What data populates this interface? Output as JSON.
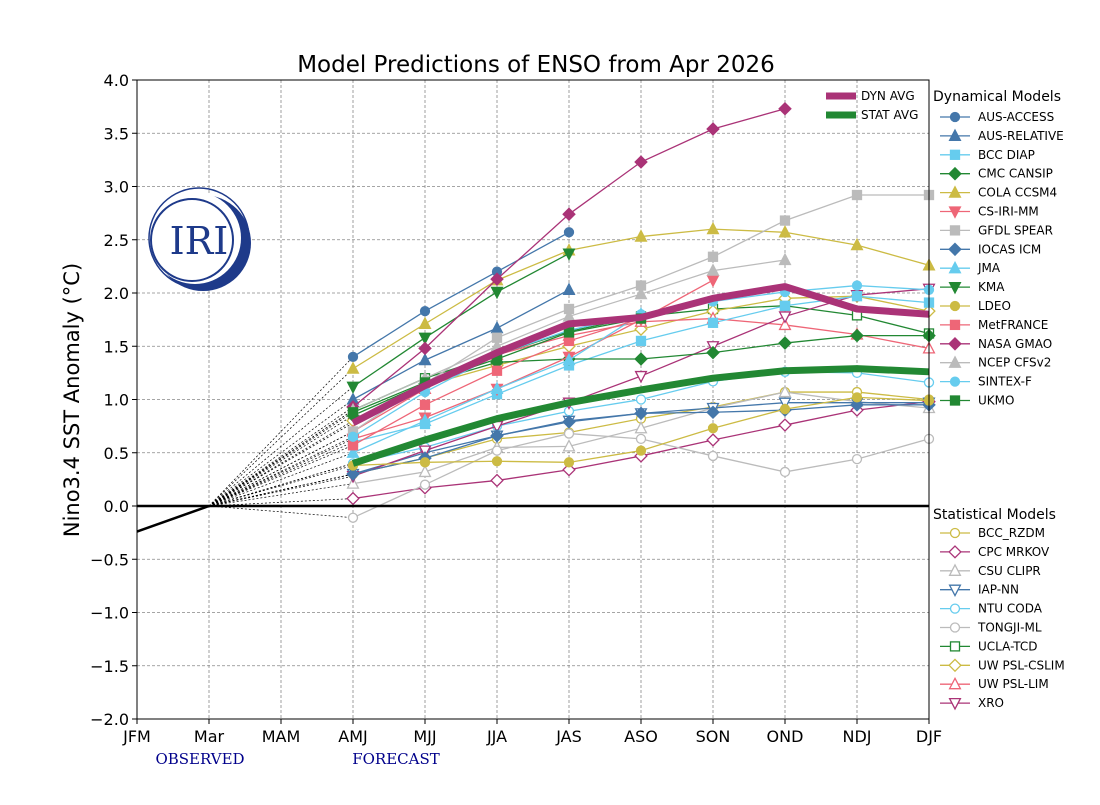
{
  "chart_data": {
    "type": "line",
    "title": "Model Predictions of ENSO from Apr 2026",
    "ylabel": "Nino3.4 SST Anomaly (°C)",
    "xlabel": "",
    "categories": [
      "JFM",
      "Mar",
      "MAM",
      "AMJ",
      "MJJ",
      "JJA",
      "JAS",
      "ASO",
      "SON",
      "OND",
      "NDJ",
      "DJF"
    ],
    "ylim": [
      -2.0,
      4.0
    ],
    "yticks": [
      "−2.0",
      "−1.5",
      "−1.0",
      "−0.5",
      "0.0",
      "0.5",
      "1.0",
      "1.5",
      "2.0",
      "2.5",
      "3.0",
      "3.5",
      "4.0"
    ],
    "grid": true,
    "observed_label": "OBSERVED",
    "forecast_label": "FORECAST",
    "logo": "IRI",
    "observed": {
      "x": [
        "JFM",
        "Mar"
      ],
      "values": [
        -0.24,
        0.0
      ]
    },
    "forecast_x": [
      "AMJ",
      "MJJ",
      "JJA",
      "JAS",
      "ASO",
      "SON",
      "OND",
      "NDJ",
      "DJF"
    ],
    "averages": [
      {
        "name": "DYN AVG",
        "color": "#aa3377",
        "values": [
          0.78,
          1.13,
          1.44,
          1.71,
          1.77,
          1.95,
          2.06,
          1.85,
          1.8
        ]
      },
      {
        "name": "STAT AVG",
        "color": "#228833",
        "values": [
          0.4,
          0.62,
          0.82,
          0.97,
          1.09,
          1.2,
          1.27,
          1.29,
          1.26
        ]
      }
    ],
    "dynamical_title": "Dynamical Models",
    "statistical_title": "Statistical Models",
    "dynamical": [
      {
        "name": "AUS-ACCESS",
        "color": "#4477aa",
        "marker": "circle",
        "filled": true,
        "values": [
          1.4,
          1.83,
          2.2,
          2.57
        ]
      },
      {
        "name": "AUS-RELATIVE",
        "color": "#4477aa",
        "marker": "triangle-up",
        "filled": true,
        "values": [
          1.0,
          1.37,
          1.67,
          2.03
        ]
      },
      {
        "name": "BCC DIAP",
        "color": "#66ccee",
        "marker": "square",
        "filled": true,
        "values": [
          0.6,
          0.77,
          1.05,
          1.32,
          1.55,
          1.72,
          1.88,
          1.97,
          1.91
        ]
      },
      {
        "name": "CMC CANSIP",
        "color": "#228833",
        "marker": "diamond",
        "filled": true,
        "values": [
          0.85,
          1.15,
          1.35,
          1.38,
          1.38,
          1.44,
          1.53,
          1.6,
          1.6
        ]
      },
      {
        "name": "COLA CCSM4",
        "color": "#ccbb44",
        "marker": "triangle-up",
        "filled": true,
        "values": [
          1.29,
          1.71,
          2.12,
          2.4,
          2.53,
          2.6,
          2.57,
          2.45,
          2.26
        ]
      },
      {
        "name": "CS-IRI-MM",
        "color": "#ee6677",
        "marker": "triangle-down",
        "filled": true,
        "values": [
          0.63,
          0.83,
          1.1,
          1.4,
          1.75,
          2.12
        ]
      },
      {
        "name": "GFDL SPEAR",
        "color": "#bbbbbb",
        "marker": "square",
        "filled": true,
        "values": [
          0.7,
          1.15,
          1.58,
          1.85,
          2.07,
          2.34,
          2.68,
          2.92,
          2.92
        ]
      },
      {
        "name": "IOCAS ICM",
        "color": "#4477aa",
        "marker": "diamond",
        "filled": true,
        "values": [
          0.3,
          0.45,
          0.66,
          0.79,
          0.87,
          0.88,
          0.9,
          0.95,
          0.95
        ]
      },
      {
        "name": "JMA",
        "color": "#66ccee",
        "marker": "triangle-up",
        "filled": true,
        "values": [
          0.5,
          0.8,
          1.1,
          1.37,
          1.8
        ]
      },
      {
        "name": "KMA",
        "color": "#228833",
        "marker": "triangle-down",
        "filled": true,
        "values": [
          1.12,
          1.58,
          2.01,
          2.37
        ]
      },
      {
        "name": "LDEO",
        "color": "#ccbb44",
        "marker": "circle",
        "filled": true,
        "values": [
          0.38,
          0.41,
          0.42,
          0.41,
          0.52,
          0.73,
          0.91,
          1.02,
          0.99
        ]
      },
      {
        "name": "MetFRANCE",
        "color": "#ee6677",
        "marker": "square",
        "filled": true,
        "values": [
          0.57,
          0.95,
          1.27,
          1.55,
          1.76
        ]
      },
      {
        "name": "NASA GMAO",
        "color": "#aa3377",
        "marker": "diamond",
        "filled": true,
        "values": [
          0.93,
          1.48,
          2.13,
          2.74,
          3.23,
          3.54,
          3.73
        ]
      },
      {
        "name": "NCEP CFSv2",
        "color": "#bbbbbb",
        "marker": "triangle-up",
        "filled": true,
        "values": [
          0.9,
          1.2,
          1.5,
          1.78,
          1.99,
          2.21,
          2.31
        ]
      },
      {
        "name": "SINTEX-F",
        "color": "#66ccee",
        "marker": "circle",
        "filled": true,
        "values": [
          0.65,
          1.07,
          1.42,
          1.65,
          1.8,
          1.92,
          2.01,
          2.07,
          2.03
        ]
      },
      {
        "name": "UKMO",
        "color": "#228833",
        "marker": "square",
        "filled": true,
        "values": [
          0.88,
          1.16,
          1.38,
          1.63,
          1.76
        ]
      }
    ],
    "statistical": [
      {
        "name": "BCC_RZDM",
        "color": "#ccbb44",
        "marker": "circle",
        "filled": false,
        "values": [
          0.3,
          0.45,
          0.63,
          0.69,
          0.82,
          0.93,
          1.07,
          1.07,
          1.0
        ]
      },
      {
        "name": "CPC MRKOV",
        "color": "#aa3377",
        "marker": "diamond",
        "filled": false,
        "values": [
          0.07,
          0.17,
          0.24,
          0.34,
          0.47,
          0.62,
          0.76,
          0.9,
          0.98
        ]
      },
      {
        "name": "CSU CLIPR",
        "color": "#bbbbbb",
        "marker": "triangle-up",
        "filled": false,
        "values": [
          0.21,
          0.32,
          0.55,
          0.56,
          0.73,
          0.92,
          1.07,
          0.98,
          0.92
        ]
      },
      {
        "name": "IAP-NN",
        "color": "#4477aa",
        "marker": "triangle-down",
        "filled": false,
        "values": [
          0.3,
          0.5,
          0.66,
          0.8,
          0.87,
          0.92,
          0.97,
          0.97,
          0.97
        ]
      },
      {
        "name": "NTU CODA",
        "color": "#66ccee",
        "marker": "circle",
        "filled": false,
        "values": [
          0.4,
          0.55,
          0.75,
          0.89,
          1.0,
          1.17,
          1.26,
          1.25,
          1.16
        ]
      },
      {
        "name": "TONGJI-ML",
        "color": "#bbbbbb",
        "marker": "circle",
        "filled": false,
        "values": [
          -0.11,
          0.2,
          0.52,
          0.68,
          0.63,
          0.47,
          0.32,
          0.44,
          0.63
        ]
      },
      {
        "name": "UCLA-TCD",
        "color": "#228833",
        "marker": "square",
        "filled": false,
        "values": [
          0.9,
          1.2,
          1.42,
          1.64,
          1.78,
          1.85,
          1.88,
          1.79,
          1.62
        ]
      },
      {
        "name": "UW PSL-CSLIM",
        "color": "#ccbb44",
        "marker": "diamond",
        "filled": false,
        "values": [
          0.8,
          1.13,
          1.32,
          1.5,
          1.66,
          1.83,
          1.95,
          1.97,
          1.83
        ]
      },
      {
        "name": "UW PSL-LIM",
        "color": "#ee6677",
        "marker": "triangle-up",
        "filled": false,
        "values": [
          0.7,
          1.1,
          1.42,
          1.6,
          1.73,
          1.76,
          1.7,
          1.61,
          1.48
        ]
      },
      {
        "name": "XRO",
        "color": "#aa3377",
        "marker": "triangle-down",
        "filled": false,
        "values": [
          0.28,
          0.52,
          0.75,
          0.97,
          1.22,
          1.5,
          1.78,
          1.98,
          2.04
        ]
      }
    ]
  }
}
